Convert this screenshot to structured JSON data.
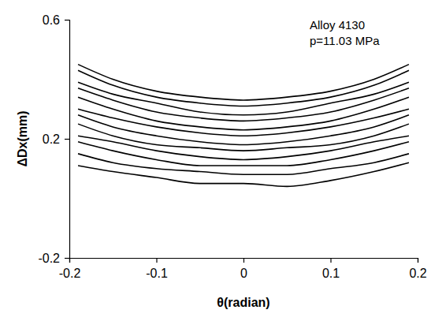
{
  "chart_data": {
    "type": "line",
    "x_label": "θ(radian)",
    "y_label": "ΔDx(mm)",
    "annotations": [
      "Alloy 4130",
      "p=11.03 MPa"
    ],
    "x": [
      -0.19,
      -0.15,
      -0.1,
      -0.05,
      0,
      0.05,
      0.1,
      0.15,
      0.19
    ],
    "series": [
      {
        "color": "#000000",
        "values": [
          0.45,
          0.4,
          0.36,
          0.34,
          0.33,
          0.34,
          0.36,
          0.4,
          0.45
        ]
      },
      {
        "color": "#000000",
        "values": [
          0.43,
          0.38,
          0.34,
          0.32,
          0.31,
          0.32,
          0.34,
          0.38,
          0.43
        ]
      },
      {
        "color": "#000000",
        "values": [
          0.39,
          0.35,
          0.32,
          0.29,
          0.28,
          0.29,
          0.32,
          0.35,
          0.39
        ]
      },
      {
        "color": "#000000",
        "values": [
          0.37,
          0.33,
          0.29,
          0.27,
          0.26,
          0.27,
          0.29,
          0.33,
          0.37
        ]
      },
      {
        "color": "#000000",
        "values": [
          0.34,
          0.3,
          0.26,
          0.24,
          0.23,
          0.24,
          0.26,
          0.3,
          0.34
        ]
      },
      {
        "color": "#000000",
        "values": [
          0.3,
          0.27,
          0.24,
          0.22,
          0.21,
          0.22,
          0.24,
          0.27,
          0.3
        ]
      },
      {
        "color": "#000000",
        "values": [
          0.28,
          0.24,
          0.21,
          0.19,
          0.18,
          0.19,
          0.21,
          0.24,
          0.28
        ]
      },
      {
        "color": "#000000",
        "values": [
          0.25,
          0.21,
          0.18,
          0.17,
          0.16,
          0.17,
          0.18,
          0.21,
          0.25
        ]
      },
      {
        "color": "#000000",
        "values": [
          0.21,
          0.19,
          0.16,
          0.14,
          0.13,
          0.14,
          0.16,
          0.19,
          0.21
        ]
      },
      {
        "color": "#000000",
        "values": [
          0.19,
          0.16,
          0.13,
          0.11,
          0.11,
          0.11,
          0.13,
          0.16,
          0.19
        ]
      },
      {
        "color": "#000000",
        "values": [
          0.15,
          0.12,
          0.1,
          0.09,
          0.08,
          0.08,
          0.1,
          0.12,
          0.15
        ]
      },
      {
        "color": "#000000",
        "values": [
          0.11,
          0.09,
          0.07,
          0.05,
          0.05,
          0.04,
          0.06,
          0.09,
          0.12
        ]
      }
    ],
    "xlim": [
      -0.2,
      0.2
    ],
    "xticks": [
      -0.2,
      -0.1,
      0,
      0.1,
      0.2
    ],
    "ylim": [
      -0.2,
      0.6
    ],
    "yticks": [
      -0.2,
      0.2,
      0.6
    ],
    "grid": false,
    "line_style": "solid"
  }
}
